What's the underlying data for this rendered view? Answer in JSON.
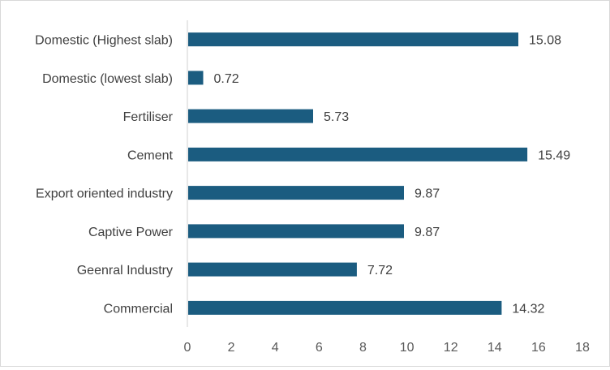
{
  "chart_data": {
    "type": "bar",
    "orientation": "horizontal",
    "categories": [
      "Domestic (Highest slab)",
      "Domestic (lowest slab)",
      "Fertiliser",
      "Cement",
      "Export oriented industry",
      "Captive Power",
      "Geenral Industry",
      "Commercial"
    ],
    "values": [
      15.08,
      0.72,
      5.73,
      15.49,
      9.87,
      9.87,
      7.72,
      14.32
    ],
    "data_labels": [
      "15.08",
      "0.72",
      "5.73",
      "15.49",
      "9.87",
      "9.87",
      "7.72",
      "14.32"
    ],
    "title": "",
    "xlabel": "",
    "ylabel": "",
    "xlim": [
      0,
      18
    ],
    "x_ticks": [
      0,
      2,
      4,
      6,
      8,
      10,
      12,
      14,
      16,
      18
    ],
    "x_tick_labels": [
      "0",
      "2",
      "4",
      "6",
      "8",
      "10",
      "12",
      "14",
      "16",
      "18"
    ],
    "grid": false,
    "legend": "none",
    "colors": {
      "bar": "#1b5c80",
      "axis": "#d9d9d9",
      "text": "#595959",
      "label": "#404040"
    }
  }
}
